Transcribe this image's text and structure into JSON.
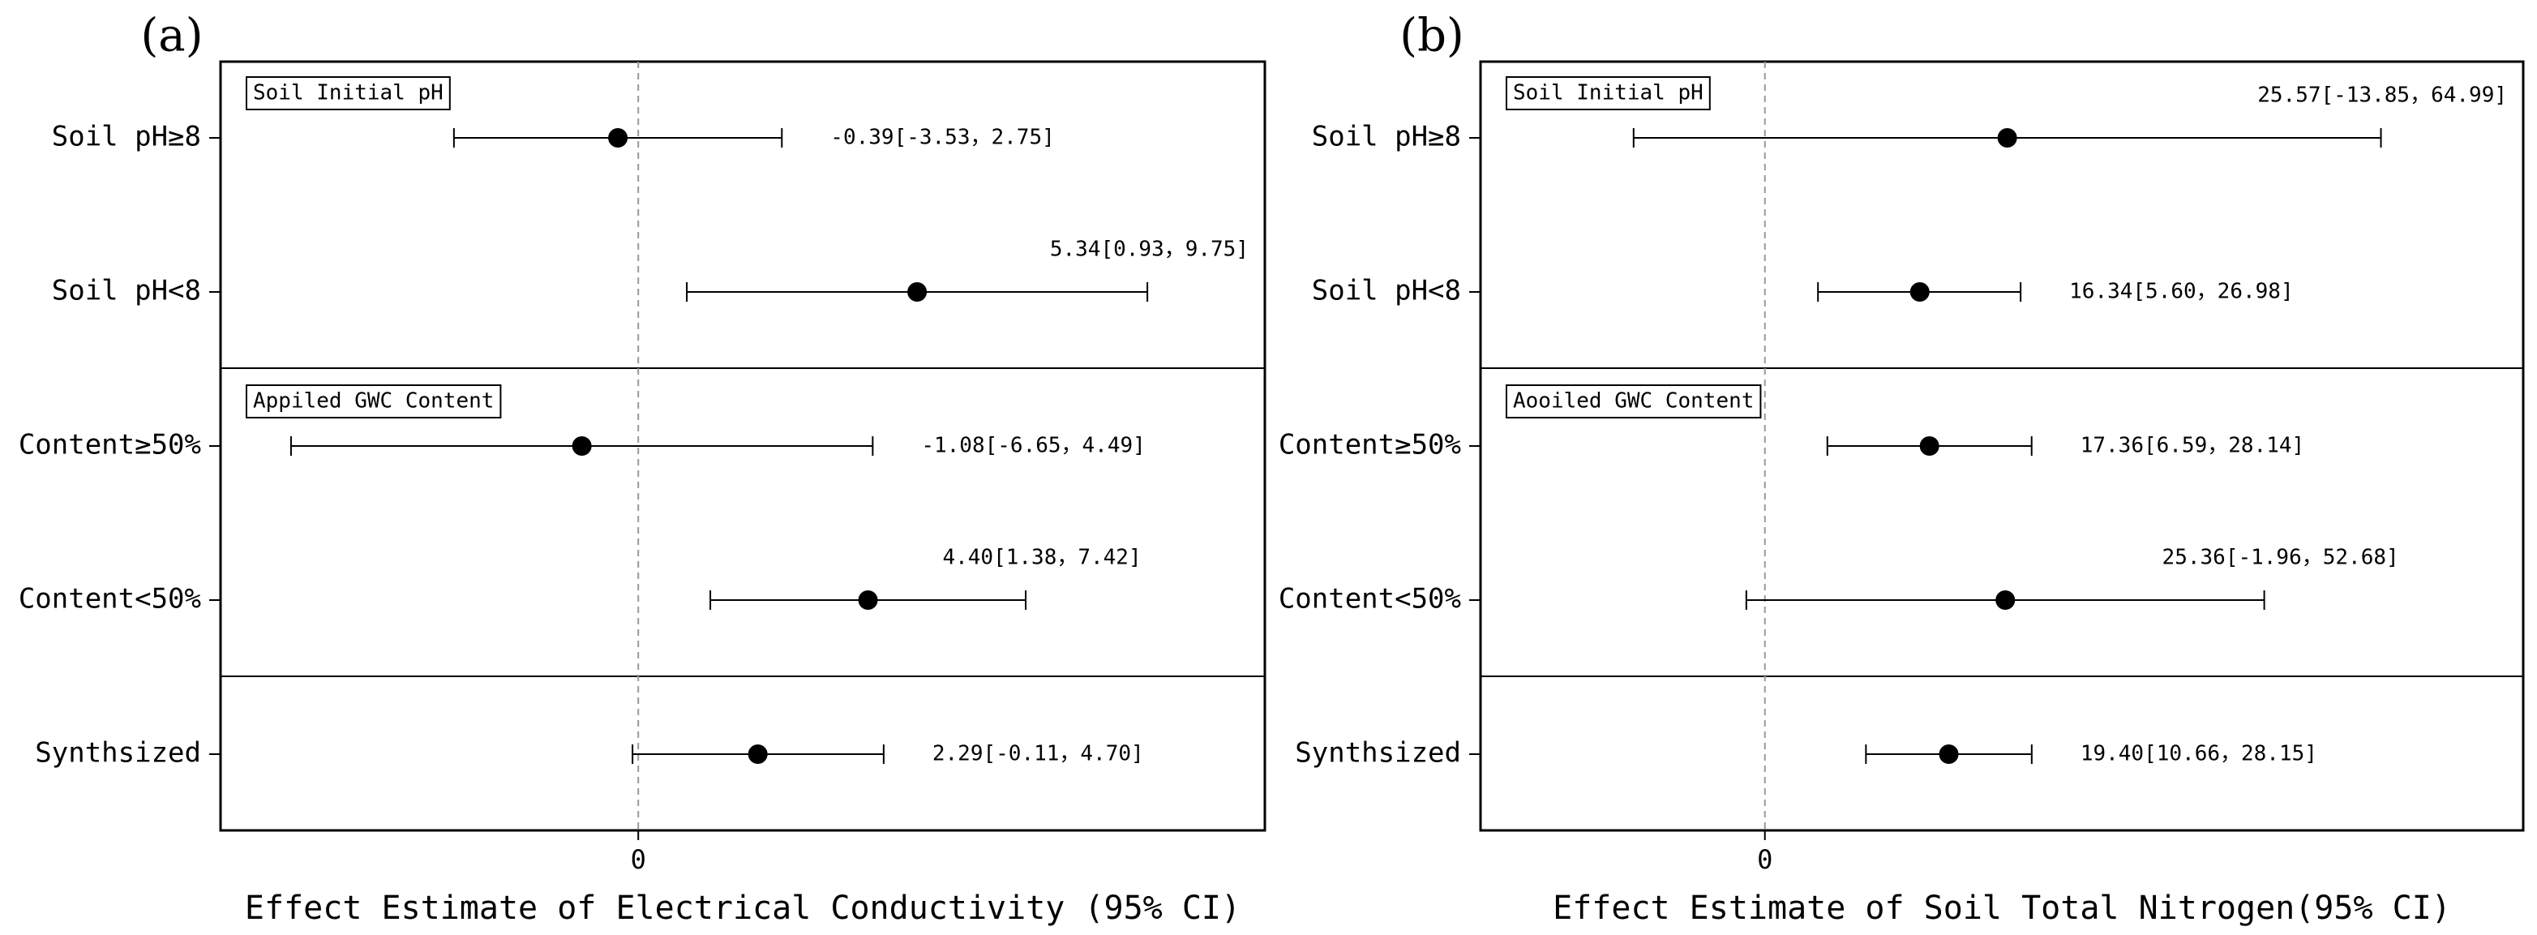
{
  "chart_data": [
    {
      "type": "forest",
      "panel": "(a)",
      "x_label": "Effect Estimate of Electrical Conductivity (95% CI)",
      "categories": [
        "Soil pH≥8",
        "Soil pH<8",
        "Content≥50%",
        "Content<50%",
        "Synthsized"
      ],
      "groups": [
        "Soil Initial pH",
        "Appiled GWC Content"
      ],
      "values": [
        -0.39,
        5.34,
        -1.08,
        4.4,
        2.29
      ],
      "lower": [
        -3.53,
        0.93,
        -6.65,
        1.38,
        -0.11
      ],
      "upper": [
        2.75,
        9.75,
        4.49,
        7.42,
        4.7
      ],
      "value_labels": [
        "-0.39[-3.53，2.75]",
        "5.34[0.93，9.75]",
        "-1.08[-6.65，4.49]",
        "4.40[1.38，7.42]",
        "2.29[-0.11，4.70]"
      ],
      "xlim": [
        -8,
        12
      ],
      "xticks": [
        0
      ],
      "color": "#000000"
    },
    {
      "type": "forest",
      "panel": "(b)",
      "x_label": "Effect Estimate of Soil Total Nitrogen(95% CI)",
      "categories": [
        "Soil pH≥8",
        "Soil pH<8",
        "Content≥50%",
        "Content<50%",
        "Synthsized"
      ],
      "groups": [
        "Soil Initial pH",
        "Aooiled GWC Content"
      ],
      "values": [
        25.57,
        16.34,
        17.36,
        25.36,
        19.4
      ],
      "lower": [
        -13.85,
        5.6,
        6.59,
        -1.96,
        10.66
      ],
      "upper": [
        64.99,
        26.98,
        28.14,
        52.68,
        28.15
      ],
      "value_labels": [
        "25.57[-13.85，64.99]",
        "16.34[5.60，26.98]",
        "17.36[6.59，28.14]",
        "25.36[-1.96，52.68]",
        "19.40[10.66，28.15]"
      ],
      "xlim": [
        -30,
        80
      ],
      "xticks": [
        0
      ],
      "color": "#000000"
    }
  ]
}
